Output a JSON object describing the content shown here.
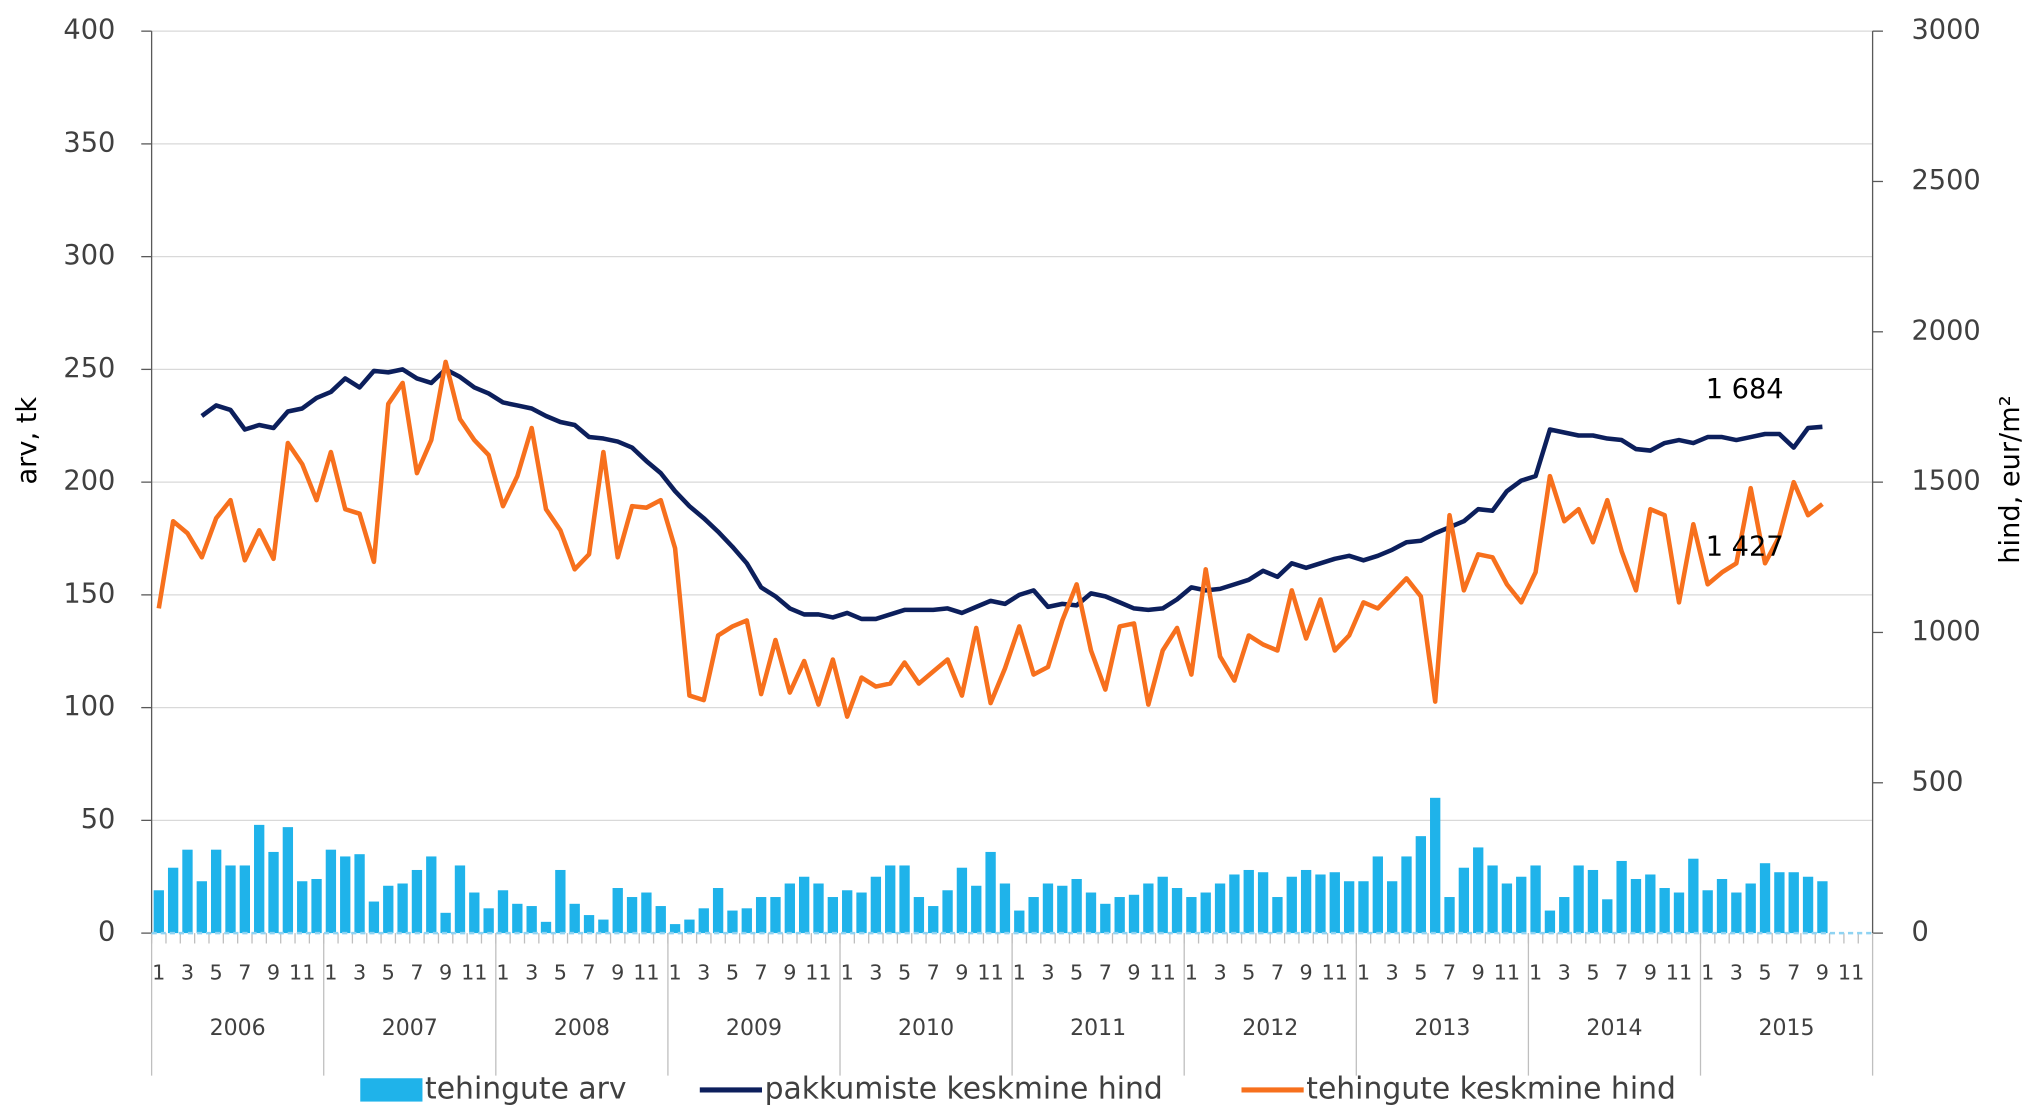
{
  "chart_data": {
    "type": "bar_line",
    "y_label": "arv, tk",
    "y2_label": "hind, eur/m²",
    "categories": [
      "1",
      null,
      "3",
      null,
      "5",
      null,
      "7",
      null,
      "9",
      null,
      "11",
      null,
      "1",
      null,
      "3",
      null,
      "5",
      null,
      "7",
      null,
      "9",
      null,
      "11",
      null,
      "1",
      null,
      "3",
      null,
      "5",
      null,
      "7",
      null,
      "9",
      null,
      "11",
      null,
      "1",
      null,
      "3",
      null,
      "5",
      null,
      "7",
      null,
      "9",
      null,
      "11",
      null,
      "1",
      null,
      "3",
      null,
      "5",
      null,
      "7",
      null,
      "9",
      null,
      "11",
      null,
      "1",
      null,
      "3",
      null,
      "5",
      null,
      "7",
      null,
      "9",
      null,
      "11",
      null,
      "1",
      null,
      "3",
      null,
      "5",
      null,
      "7",
      null,
      "9",
      null,
      "11",
      null,
      "1",
      null,
      "3",
      null,
      "5",
      null,
      "7",
      null,
      "9",
      null,
      "11",
      null,
      "1",
      null,
      "3",
      null,
      "5",
      null,
      "7",
      null,
      "9",
      null,
      "11",
      null,
      "1",
      null,
      "3",
      null,
      "5",
      null,
      "7",
      null,
      "9",
      null,
      "11",
      null
    ],
    "years": [
      "2006",
      "2007",
      "2008",
      "2009",
      "2010",
      "2011",
      "2012",
      "2013",
      "2014",
      "2015"
    ],
    "ylim": [
      0,
      400
    ],
    "yticks": [
      0,
      50,
      100,
      150,
      200,
      250,
      300,
      350,
      400
    ],
    "y2lim": [
      0,
      3000
    ],
    "y2ticks": [
      0,
      500,
      1000,
      1500,
      2000,
      2500,
      3000
    ],
    "grid": true,
    "legend": "bottom",
    "series": [
      {
        "name": "tehingute arv",
        "type": "bar",
        "color": "#1fb3ea",
        "values": [
          19,
          29,
          37,
          23,
          37,
          30,
          30,
          48,
          36,
          47,
          23,
          24,
          37,
          34,
          35,
          14,
          21,
          22,
          28,
          34,
          9,
          30,
          18,
          11,
          19,
          13,
          12,
          5,
          28,
          13,
          8,
          6,
          20,
          16,
          18,
          12,
          4,
          6,
          11,
          20,
          10,
          11,
          16,
          16,
          22,
          25,
          22,
          16,
          19,
          18,
          25,
          30,
          30,
          16,
          12,
          19,
          29,
          21,
          36,
          22,
          10,
          16,
          22,
          21,
          24,
          18,
          13,
          16,
          17,
          22,
          25,
          20,
          16,
          18,
          22,
          26,
          28,
          27,
          16,
          25,
          28,
          26,
          27,
          23,
          23,
          34,
          23,
          34,
          43,
          60,
          16,
          29,
          38,
          30,
          22,
          25,
          30,
          10,
          16,
          30,
          28,
          15,
          32,
          24,
          26,
          20,
          18,
          33,
          19,
          24,
          18,
          22,
          31,
          27,
          27,
          25,
          23,
          null,
          null,
          null
        ]
      },
      {
        "name": "pakkumiste keskmine hind",
        "type": "line",
        "axis": "y2",
        "color": "#0c1f5c",
        "values": [
          null,
          null,
          null,
          1720,
          1755,
          1740,
          1675,
          1690,
          1680,
          1735,
          1745,
          1780,
          1800,
          1845,
          1815,
          1870,
          1865,
          1875,
          1845,
          1830,
          1875,
          1850,
          1815,
          1795,
          1765,
          1755,
          1745,
          1720,
          1700,
          1690,
          1650,
          1645,
          1635,
          1615,
          1570,
          1530,
          1470,
          1420,
          1380,
          1335,
          1285,
          1230,
          1150,
          1120,
          1080,
          1060,
          1060,
          1050,
          1065,
          1045,
          1045,
          1060,
          1075,
          1075,
          1075,
          1080,
          1065,
          1085,
          1105,
          1095,
          1125,
          1140,
          1085,
          1095,
          1090,
          1130,
          1120,
          1100,
          1080,
          1075,
          1080,
          1110,
          1150,
          1140,
          1145,
          1160,
          1175,
          1205,
          1185,
          1230,
          1215,
          1230,
          1245,
          1255,
          1240,
          1255,
          1275,
          1300,
          1305,
          1330,
          1350,
          1370,
          1410,
          1405,
          1470,
          1505,
          1520,
          1675,
          1665,
          1655,
          1655,
          1645,
          1640,
          1610,
          1605,
          1630,
          1640,
          1630,
          1650,
          1650,
          1640,
          1650,
          1660,
          1660,
          1615,
          1680,
          1684,
          null,
          null,
          null
        ],
        "value_labels": [
          null,
          null,
          null,
          null,
          null,
          null,
          null,
          null,
          null,
          null,
          null,
          null,
          null,
          null,
          null,
          null,
          null,
          null,
          null,
          null,
          null,
          null,
          null,
          null,
          null,
          null,
          null,
          null,
          null,
          null,
          null,
          null,
          null,
          null,
          null,
          null,
          null,
          null,
          null,
          null,
          null,
          null,
          null,
          null,
          null,
          null,
          null,
          null,
          null,
          null,
          null,
          null,
          null,
          null,
          null,
          null,
          null,
          null,
          null,
          null,
          null,
          null,
          null,
          null,
          null,
          null,
          null,
          null,
          null,
          null,
          null,
          null,
          null,
          null,
          null,
          null,
          null,
          null,
          null,
          null,
          null,
          null,
          null,
          null,
          null,
          null,
          null,
          null,
          null,
          null,
          null,
          null,
          null,
          null,
          null,
          null,
          null,
          null,
          null,
          null,
          null,
          null,
          null,
          null,
          null,
          null,
          null,
          null,
          null,
          null,
          null,
          null,
          null,
          null,
          null,
          null,
          "1 684",
          null,
          null,
          null
        ]
      },
      {
        "name": "tehingute keskmine hind",
        "type": "line",
        "axis": "y2",
        "color": "#f7701d",
        "values": [
          1080,
          1370,
          1330,
          1250,
          1380,
          1440,
          1240,
          1340,
          1245,
          1630,
          1560,
          1440,
          1600,
          1410,
          1395,
          1235,
          1760,
          1830,
          1530,
          1640,
          1900,
          1710,
          1640,
          1590,
          1420,
          1520,
          1680,
          1410,
          1340,
          1210,
          1260,
          1600,
          1250,
          1420,
          1415,
          1440,
          1280,
          790,
          775,
          990,
          1020,
          1040,
          795,
          975,
          800,
          905,
          760,
          910,
          720,
          850,
          820,
          830,
          900,
          830,
          870,
          910,
          790,
          1015,
          765,
          880,
          1020,
          860,
          885,
          1040,
          1160,
          940,
          810,
          1020,
          1030,
          760,
          940,
          1015,
          860,
          1210,
          920,
          840,
          990,
          960,
          940,
          1140,
          980,
          1110,
          940,
          990,
          1100,
          1080,
          1130,
          1180,
          1120,
          770,
          1390,
          1140,
          1260,
          1250,
          1160,
          1100,
          1200,
          1520,
          1370,
          1410,
          1300,
          1440,
          1270,
          1140,
          1410,
          1390,
          1100,
          1360,
          1160,
          1200,
          1230,
          1480,
          1230,
          1320,
          1500,
          1390,
          1427,
          null,
          null,
          null
        ],
        "value_labels": [
          null,
          null,
          null,
          null,
          null,
          null,
          null,
          null,
          null,
          null,
          null,
          null,
          null,
          null,
          null,
          null,
          null,
          null,
          null,
          null,
          null,
          null,
          null,
          null,
          null,
          null,
          null,
          null,
          null,
          null,
          null,
          null,
          null,
          null,
          null,
          null,
          null,
          null,
          null,
          null,
          null,
          null,
          null,
          null,
          null,
          null,
          null,
          null,
          null,
          null,
          null,
          null,
          null,
          null,
          null,
          null,
          null,
          null,
          null,
          null,
          null,
          null,
          null,
          null,
          null,
          null,
          null,
          null,
          null,
          null,
          null,
          null,
          null,
          null,
          null,
          null,
          null,
          null,
          null,
          null,
          null,
          null,
          null,
          null,
          null,
          null,
          null,
          null,
          null,
          null,
          null,
          null,
          null,
          null,
          null,
          null,
          null,
          null,
          null,
          null,
          null,
          null,
          null,
          null,
          null,
          null,
          null,
          null,
          null,
          null,
          null,
          null,
          null,
          null,
          null,
          null,
          "1 427",
          null,
          null,
          null
        ]
      }
    ]
  }
}
